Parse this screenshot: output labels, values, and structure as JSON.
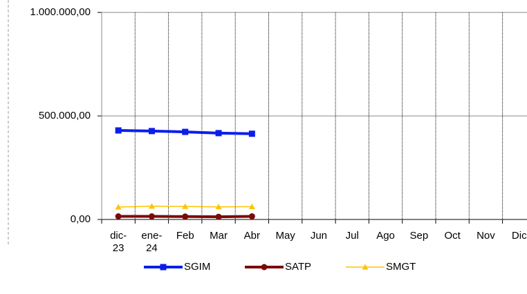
{
  "chart_data": {
    "type": "line",
    "categories": [
      "dic-23",
      "ene-24",
      "Feb",
      "Mar",
      "Abr",
      "May",
      "Jun",
      "Jul",
      "Ago",
      "Sep",
      "Oct",
      "Nov",
      "Dic"
    ],
    "series": [
      {
        "name": "SGIM",
        "color": "#0a1eeb",
        "marker": "square",
        "values": [
          430000,
          427000,
          423000,
          417000,
          414000,
          null,
          null,
          null,
          null,
          null,
          null,
          null,
          null
        ]
      },
      {
        "name": "SATP",
        "color": "#7a0a0a",
        "marker": "circle",
        "values": [
          15000,
          15000,
          14000,
          13000,
          15000,
          null,
          null,
          null,
          null,
          null,
          null,
          null,
          null
        ]
      },
      {
        "name": "SMGT",
        "color": "#ffc400",
        "marker": "triangle",
        "values": [
          60000,
          64000,
          63000,
          61000,
          62000,
          null,
          null,
          null,
          null,
          null,
          null,
          null,
          null
        ]
      }
    ],
    "ylim": [
      0,
      1000000
    ],
    "yticks": [
      {
        "value": 0,
        "label": "0,00"
      },
      {
        "value": 500000,
        "label": "500.000,00"
      },
      {
        "value": 1000000,
        "label": "1.000.000,00"
      }
    ],
    "grid": true,
    "legend": "bottom"
  }
}
